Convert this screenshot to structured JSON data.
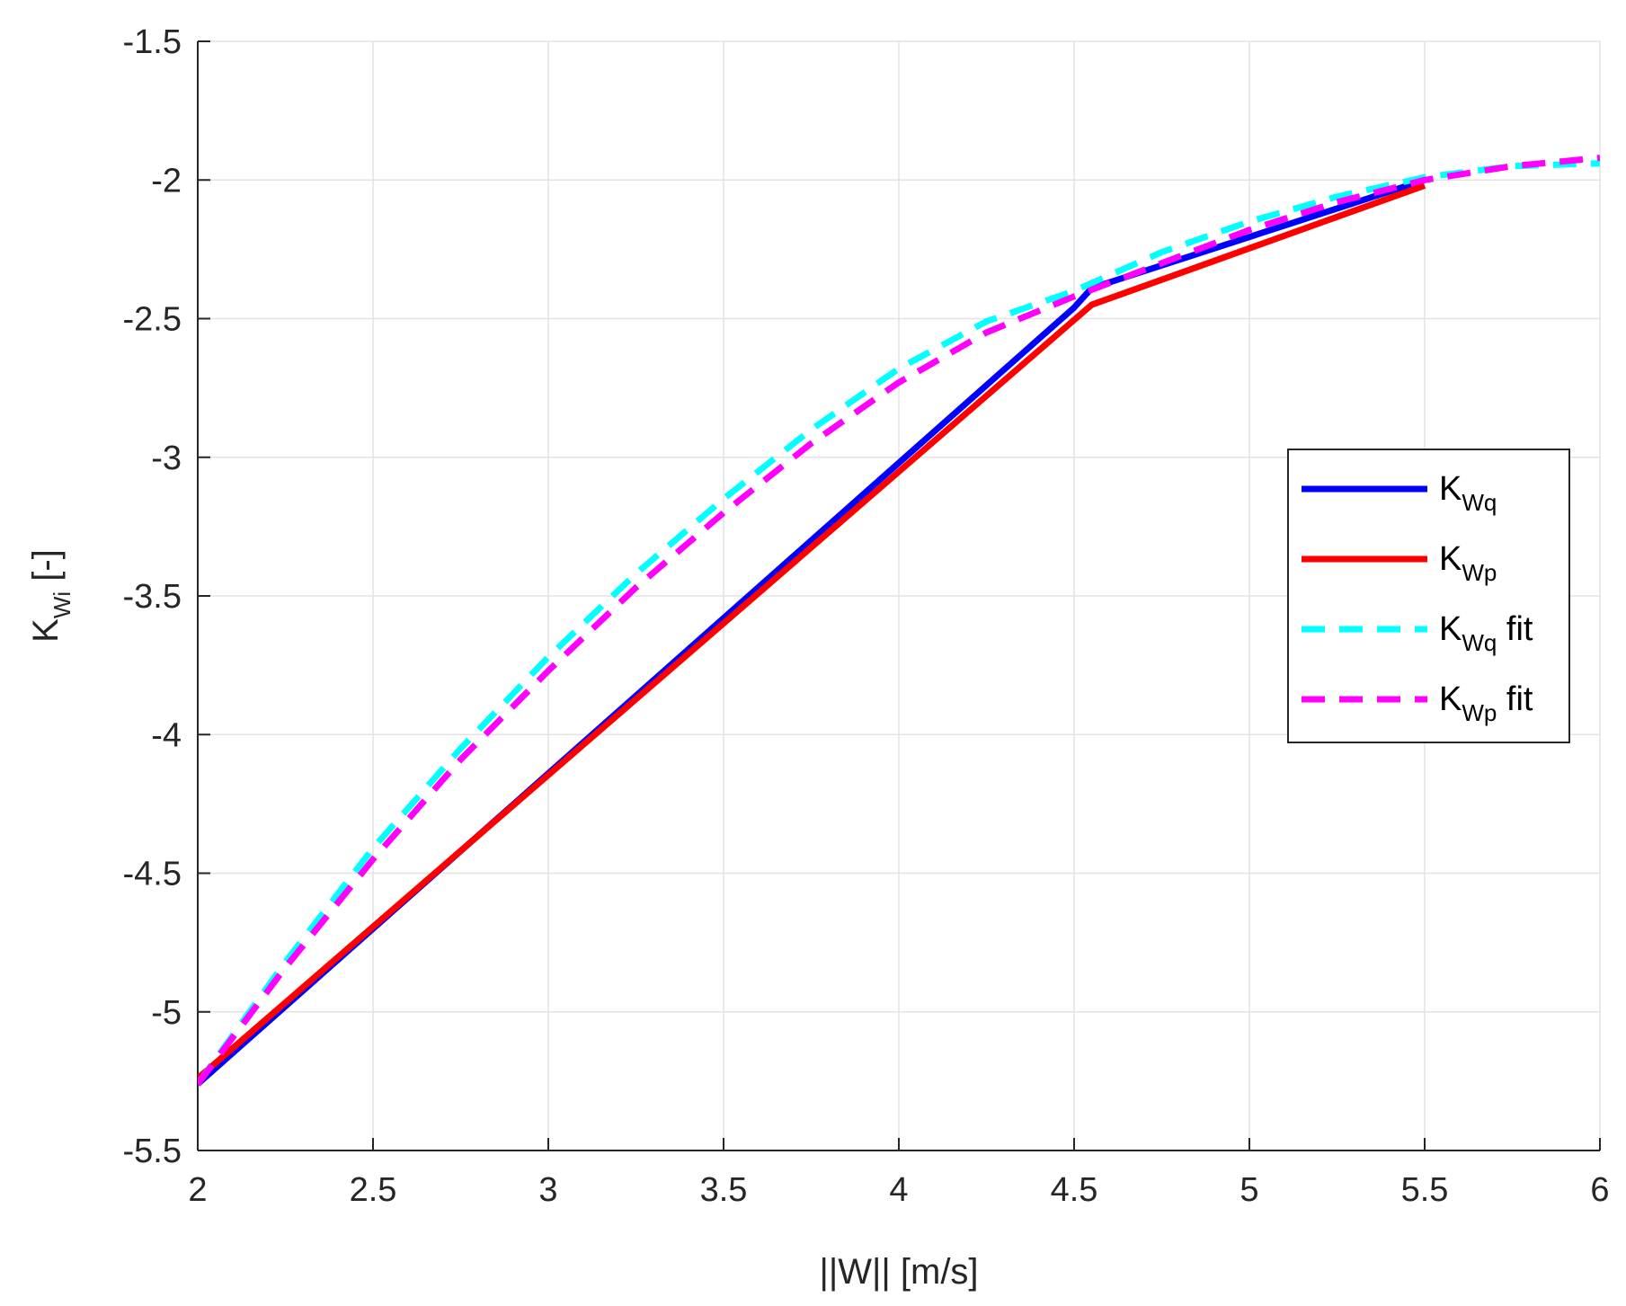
{
  "chart_data": {
    "type": "line",
    "title": "",
    "xlabel": "||W|| [m/s]",
    "ylabel": {
      "main": "K",
      "sub": "Wi",
      "suffix": " [-]"
    },
    "xlim": [
      2,
      6
    ],
    "ylim": [
      -5.5,
      -1.5
    ],
    "xticks": [
      2,
      2.5,
      3,
      3.5,
      4,
      4.5,
      5,
      5.5,
      6
    ],
    "xtick_labels": [
      "2",
      "2.5",
      "3",
      "3.5",
      "4",
      "4.5",
      "5",
      "5.5",
      "6"
    ],
    "yticks": [
      -1.5,
      -2,
      -2.5,
      -3,
      -3.5,
      -4,
      -4.5,
      -5,
      -5.5
    ],
    "ytick_labels": [
      "-1.5",
      "-2",
      "-2.5",
      "-3",
      "-3.5",
      "-4",
      "-4.5",
      "-5",
      "-5.5"
    ],
    "grid": true,
    "legend_position": "right",
    "series": [
      {
        "name": "K_Wq",
        "label": {
          "main": "K",
          "sub": "Wq",
          "suffix": ""
        },
        "color": "#0000ff",
        "style": "solid",
        "x": [
          2.0,
          4.5,
          4.55,
          5.5
        ],
        "y": [
          -5.26,
          -2.46,
          -2.39,
          -2.0
        ]
      },
      {
        "name": "K_Wp",
        "label": {
          "main": "K",
          "sub": "Wp",
          "suffix": ""
        },
        "color": "#ff0000",
        "style": "solid",
        "x": [
          2.0,
          4.55,
          5.5
        ],
        "y": [
          -5.24,
          -2.45,
          -2.02
        ]
      },
      {
        "name": "K_Wq fit",
        "label": {
          "main": "K",
          "sub": "Wq",
          "suffix": " fit"
        },
        "color": "#00ffff",
        "style": "dashed",
        "x": [
          2.0,
          2.25,
          2.5,
          2.75,
          3.0,
          3.25,
          3.5,
          3.75,
          4.0,
          4.25,
          4.5,
          4.75,
          5.0,
          5.25,
          5.5,
          5.75,
          6.0
        ],
        "y": [
          -5.26,
          -4.82,
          -4.41,
          -4.05,
          -3.72,
          -3.42,
          -3.15,
          -2.9,
          -2.68,
          -2.51,
          -2.4,
          -2.26,
          -2.15,
          -2.06,
          -1.99,
          -1.95,
          -1.94
        ]
      },
      {
        "name": "K_Wp fit",
        "label": {
          "main": "K",
          "sub": "Wp",
          "suffix": " fit"
        },
        "color": "#ff00ff",
        "style": "dashed",
        "x": [
          2.0,
          2.25,
          2.5,
          2.75,
          3.0,
          3.25,
          3.5,
          3.75,
          4.0,
          4.25,
          4.5,
          4.75,
          5.0,
          5.25,
          5.5,
          5.75,
          6.0
        ],
        "y": [
          -5.26,
          -4.84,
          -4.45,
          -4.09,
          -3.77,
          -3.47,
          -3.2,
          -2.95,
          -2.73,
          -2.55,
          -2.42,
          -2.3,
          -2.18,
          -2.08,
          -2.0,
          -1.95,
          -1.92
        ]
      }
    ]
  }
}
